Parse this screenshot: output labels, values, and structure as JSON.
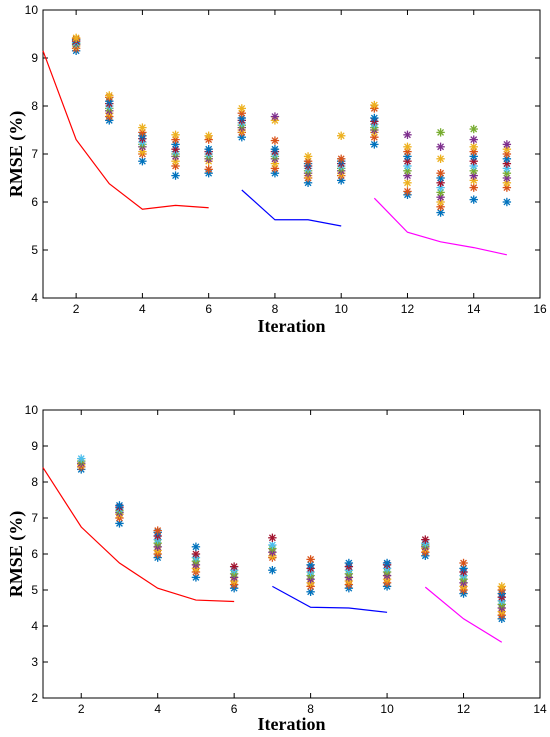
{
  "chart_data": [
    {
      "type": "line+scatter",
      "xlabel": "Iteration",
      "ylabel": "RMSE (%)",
      "xlim": [
        1,
        16
      ],
      "ylim": [
        4,
        10
      ],
      "xticks": [
        2,
        4,
        6,
        8,
        10,
        12,
        14,
        16
      ],
      "yticks": [
        4,
        5,
        6,
        7,
        8,
        9,
        10
      ],
      "grid": false,
      "lines": [
        {
          "color": "#ff0000",
          "x": [
            1,
            2,
            3,
            4,
            5,
            6
          ],
          "y": [
            9.15,
            7.3,
            6.38,
            5.85,
            5.93,
            5.88
          ]
        },
        {
          "color": "#0000ff",
          "x": [
            7,
            8,
            9,
            10
          ],
          "y": [
            6.25,
            5.63,
            5.63,
            5.5
          ]
        },
        {
          "color": "#ff00ff",
          "x": [
            11,
            12,
            13,
            14,
            15
          ],
          "y": [
            6.08,
            5.37,
            5.17,
            5.05,
            4.9
          ]
        }
      ],
      "scatter": [
        {
          "x": 2,
          "y": [
            9.15,
            9.2,
            9.25,
            9.28,
            9.3,
            9.32,
            9.35,
            9.38,
            9.4,
            9.42
          ]
        },
        {
          "x": 3,
          "y": [
            7.7,
            7.78,
            7.85,
            7.9,
            7.95,
            8.0,
            8.05,
            8.1,
            8.18,
            8.22
          ]
        },
        {
          "x": 4,
          "y": [
            6.85,
            7.0,
            7.05,
            7.15,
            7.2,
            7.25,
            7.32,
            7.38,
            7.45,
            7.55
          ]
        },
        {
          "x": 5,
          "y": [
            6.55,
            6.75,
            6.85,
            6.95,
            7.0,
            7.05,
            7.1,
            7.2,
            7.3,
            7.4
          ]
        },
        {
          "x": 6,
          "y": [
            6.6,
            6.68,
            6.85,
            6.9,
            6.95,
            7.0,
            7.05,
            7.1,
            7.3,
            7.38
          ]
        },
        {
          "x": 7,
          "y": [
            7.35,
            7.45,
            7.5,
            7.55,
            7.6,
            7.65,
            7.7,
            7.75,
            7.85,
            7.95
          ]
        },
        {
          "x": 8,
          "y": [
            6.6,
            6.7,
            6.8,
            6.9,
            6.95,
            7.0,
            7.05,
            7.1,
            7.28,
            7.7,
            7.78
          ]
        },
        {
          "x": 9,
          "y": [
            6.4,
            6.5,
            6.55,
            6.6,
            6.65,
            6.7,
            6.75,
            6.8,
            6.85,
            6.95
          ]
        },
        {
          "x": 10,
          "y": [
            6.45,
            6.55,
            6.6,
            6.65,
            6.7,
            6.75,
            6.8,
            6.85,
            6.9,
            7.38
          ]
        },
        {
          "x": 11,
          "y": [
            7.2,
            7.35,
            7.45,
            7.5,
            7.55,
            7.62,
            7.68,
            7.75,
            7.95,
            8.02
          ]
        },
        {
          "x": 12,
          "y": [
            6.15,
            6.22,
            6.4,
            6.55,
            6.65,
            6.75,
            6.85,
            6.95,
            7.05,
            7.15,
            7.4
          ]
        },
        {
          "x": 13,
          "y": [
            5.78,
            5.9,
            6.0,
            6.1,
            6.2,
            6.3,
            6.4,
            6.5,
            6.6,
            6.9,
            7.15,
            7.45
          ]
        },
        {
          "x": 14,
          "y": [
            6.05,
            6.3,
            6.45,
            6.55,
            6.65,
            6.75,
            6.85,
            6.95,
            7.05,
            7.15,
            7.3,
            7.52
          ]
        },
        {
          "x": 15,
          "y": [
            6.0,
            6.3,
            6.4,
            6.5,
            6.6,
            6.7,
            6.8,
            6.9,
            7.0,
            7.1,
            7.2
          ]
        }
      ]
    },
    {
      "type": "line+scatter",
      "xlabel": "Iteration",
      "ylabel": "RMSE (%)",
      "xlim": [
        1,
        14
      ],
      "ylim": [
        2,
        10
      ],
      "xticks": [
        2,
        4,
        6,
        8,
        10,
        12,
        14
      ],
      "yticks": [
        2,
        3,
        4,
        5,
        6,
        7,
        8,
        9,
        10
      ],
      "grid": false,
      "lines": [
        {
          "color": "#ff0000",
          "x": [
            1,
            2,
            3,
            4,
            5,
            6
          ],
          "y": [
            8.4,
            6.75,
            5.75,
            5.05,
            4.72,
            4.68
          ]
        },
        {
          "color": "#0000ff",
          "x": [
            7,
            8,
            9,
            10
          ],
          "y": [
            5.1,
            4.52,
            4.5,
            4.38
          ]
        },
        {
          "color": "#ff00ff",
          "x": [
            11,
            12,
            13
          ],
          "y": [
            5.08,
            4.2,
            3.55
          ]
        }
      ],
      "scatter": [
        {
          "x": 2,
          "y": [
            8.35,
            8.42,
            8.48,
            8.52,
            8.58,
            8.65
          ]
        },
        {
          "x": 3,
          "y": [
            6.85,
            7.0,
            7.1,
            7.15,
            7.2,
            7.25,
            7.3,
            7.35
          ]
        },
        {
          "x": 4,
          "y": [
            5.9,
            6.0,
            6.1,
            6.2,
            6.3,
            6.4,
            6.5,
            6.6,
            6.65
          ]
        },
        {
          "x": 5,
          "y": [
            5.35,
            5.5,
            5.6,
            5.7,
            5.8,
            5.9,
            6.0,
            6.2
          ]
        },
        {
          "x": 6,
          "y": [
            5.05,
            5.15,
            5.25,
            5.35,
            5.45,
            5.55,
            5.65
          ]
        },
        {
          "x": 7,
          "y": [
            5.55,
            5.9,
            5.95,
            6.05,
            6.15,
            6.25,
            6.45
          ]
        },
        {
          "x": 8,
          "y": [
            4.95,
            5.1,
            5.2,
            5.3,
            5.4,
            5.5,
            5.6,
            5.7,
            5.85
          ]
        },
        {
          "x": 9,
          "y": [
            5.05,
            5.15,
            5.25,
            5.35,
            5.45,
            5.55,
            5.65,
            5.75
          ]
        },
        {
          "x": 10,
          "y": [
            5.1,
            5.2,
            5.3,
            5.4,
            5.5,
            5.6,
            5.7,
            5.75
          ]
        },
        {
          "x": 11,
          "y": [
            5.95,
            6.05,
            6.15,
            6.2,
            6.25,
            6.3,
            6.4
          ]
        },
        {
          "x": 12,
          "y": [
            4.9,
            5.0,
            5.1,
            5.2,
            5.3,
            5.4,
            5.5,
            5.6,
            5.75
          ]
        },
        {
          "x": 13,
          "y": [
            4.2,
            4.3,
            4.4,
            4.5,
            4.6,
            4.7,
            4.8,
            4.9,
            5.0,
            5.1
          ]
        }
      ]
    }
  ],
  "palette": [
    "#0072bd",
    "#d95319",
    "#edb120",
    "#7e2f8e",
    "#77ac30",
    "#4dbeee",
    "#a2142f"
  ]
}
